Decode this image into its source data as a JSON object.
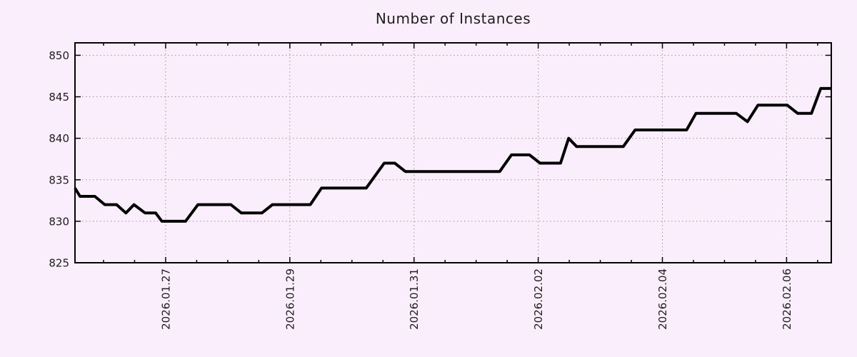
{
  "chart_data": {
    "type": "line",
    "title": "Number of Instances",
    "legend": "none",
    "background_color": "#faeefc",
    "grid": {
      "style": "dotted",
      "color": "#9c939c",
      "at": "major-ticks"
    },
    "axis_color": "#000000",
    "text_color": "#1d1d1d",
    "x_axis": {
      "kind": "date",
      "tick_labels": [
        "2026.01.27",
        "2026.01.29",
        "2026.01.31",
        "2026.02.02",
        "2026.02.04",
        "2026.02.06"
      ],
      "tick_day_offsets": [
        0,
        2,
        4,
        6,
        8,
        10
      ],
      "minor_tick_interval_days": 0.5,
      "minor_tick_range_days": [
        -1.0,
        10.5
      ],
      "range_days": [
        -1.46,
        10.72
      ],
      "label_rotation_deg": -90
    },
    "y_axis": {
      "tick_labels": [
        "825",
        "830",
        "835",
        "840",
        "845",
        "850"
      ],
      "tick_values": [
        825,
        830,
        835,
        840,
        845,
        850
      ],
      "range": [
        825,
        851.5
      ]
    },
    "series": [
      {
        "name": "instances",
        "color": "#000000",
        "line_width": 4,
        "points_day_value": [
          [
            -1.46,
            834
          ],
          [
            -1.38,
            833
          ],
          [
            -1.14,
            833
          ],
          [
            -0.98,
            832
          ],
          [
            -0.79,
            832
          ],
          [
            -0.64,
            831
          ],
          [
            -0.51,
            832
          ],
          [
            -0.33,
            831
          ],
          [
            -0.16,
            831
          ],
          [
            -0.06,
            830
          ],
          [
            0.32,
            830
          ],
          [
            0.52,
            832
          ],
          [
            1.05,
            832
          ],
          [
            1.22,
            831
          ],
          [
            1.55,
            831
          ],
          [
            1.72,
            832
          ],
          [
            2.33,
            832
          ],
          [
            2.51,
            834
          ],
          [
            3.23,
            834
          ],
          [
            3.52,
            837
          ],
          [
            3.69,
            837
          ],
          [
            3.86,
            836
          ],
          [
            5.38,
            836
          ],
          [
            5.57,
            838
          ],
          [
            5.86,
            838
          ],
          [
            6.03,
            837
          ],
          [
            6.36,
            837
          ],
          [
            6.49,
            840
          ],
          [
            6.62,
            839
          ],
          [
            7.37,
            839
          ],
          [
            7.56,
            841
          ],
          [
            8.39,
            841
          ],
          [
            8.54,
            843
          ],
          [
            9.19,
            843
          ],
          [
            9.37,
            842
          ],
          [
            9.54,
            844
          ],
          [
            10.01,
            844
          ],
          [
            10.18,
            843
          ],
          [
            10.4,
            843
          ],
          [
            10.55,
            846
          ],
          [
            10.71,
            846
          ]
        ]
      }
    ]
  }
}
